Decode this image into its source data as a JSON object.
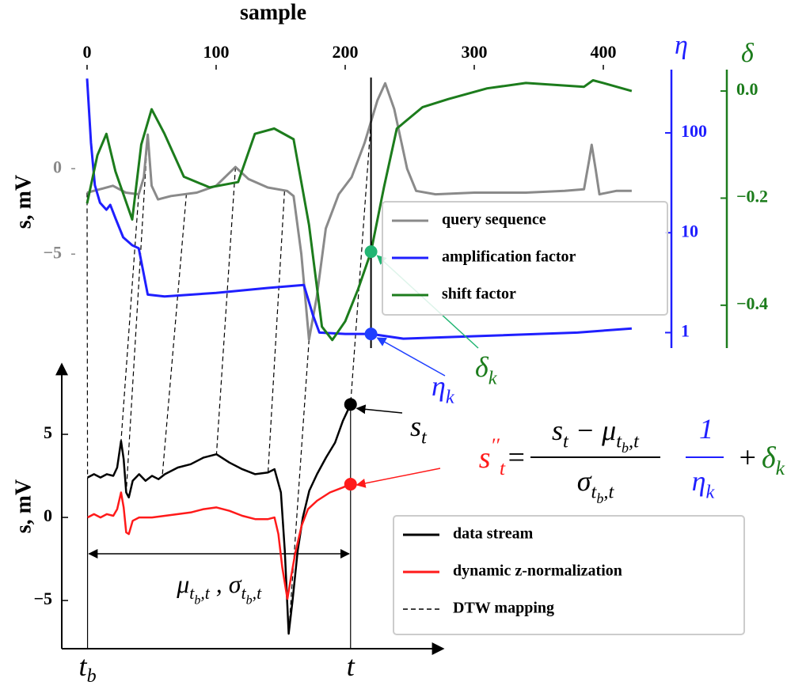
{
  "chart_data": [
    {
      "type": "line",
      "xlabel": "sample",
      "ylabel": "s,  mV",
      "y2label": "η",
      "y3label": "δ",
      "xlim": [
        -9,
        453
      ],
      "xticks": [
        0,
        100,
        200,
        300,
        400
      ],
      "ylim": [
        -10.5,
        5.8
      ],
      "yticks": [
        0,
        {
          "value": -5,
          "label": "−5"
        }
      ],
      "ycolor": "#8a8a8a",
      "y2lim": [
        0.7,
        430
      ],
      "y2scale": "log",
      "y2ticks": [
        1,
        10,
        100
      ],
      "y2color": "#1f1fff",
      "y3lim": [
        -0.48,
        0.04
      ],
      "y3ticks": [
        {
          "value": 0,
          "label": "0.0"
        },
        {
          "value": -0.2,
          "label": "−0.2"
        },
        {
          "value": -0.4,
          "label": "−0.4"
        }
      ],
      "y3color": "#1c7c1c",
      "legend": "right",
      "series": [
        {
          "name": "query sequence",
          "color": "#8a8a8a",
          "axis": "y",
          "x": [
            0,
            10,
            20,
            30,
            40,
            44,
            47,
            50,
            55,
            65,
            85,
            100,
            115,
            125,
            140,
            155,
            160,
            166,
            172,
            178,
            185,
            195,
            205,
            215,
            225,
            231,
            238,
            248,
            255,
            270,
            300,
            340,
            370,
            385,
            389,
            391,
            394,
            397,
            410,
            422
          ],
          "values": [
            -1.4,
            -1.2,
            -1.0,
            -1.4,
            -1.5,
            -0.5,
            2.0,
            -1.0,
            -1.8,
            -1.6,
            -1.4,
            -1.0,
            0.1,
            -0.6,
            -1.1,
            -1.3,
            -1.6,
            -5,
            -10.0,
            -7.5,
            -3.5,
            -1.5,
            -0.5,
            1.5,
            4.0,
            5.0,
            3.5,
            0.0,
            -1.3,
            -1.5,
            -1.4,
            -1.4,
            -1.3,
            -1.2,
            0.5,
            1.4,
            0.0,
            -1.5,
            -1.3,
            -1.3
          ]
        },
        {
          "name": "amplification factor",
          "color": "#1f1fff",
          "axis": "y2",
          "x": [
            0,
            3,
            6,
            10,
            15,
            18,
            22,
            28,
            35,
            40,
            47,
            60,
            100,
            140,
            168,
            175,
            180,
            200,
            220,
            245,
            300,
            380,
            422
          ],
          "values": [
            350,
            80,
            30,
            20,
            17,
            19,
            14,
            9,
            7.5,
            7.0,
            2.4,
            2.3,
            2.5,
            2.8,
            3.0,
            1.5,
            1.0,
            0.97,
            0.97,
            0.87,
            0.92,
            1.0,
            1.1
          ]
        },
        {
          "name": "shift factor",
          "color": "#1c7c1c",
          "axis": "y3",
          "x": [
            0,
            8,
            15,
            22,
            35,
            42,
            50,
            60,
            75,
            95,
            117,
            130,
            145,
            160,
            172,
            182,
            190,
            200,
            210,
            220,
            230,
            240,
            260,
            280,
            310,
            340,
            385,
            392,
            400,
            422
          ],
          "values": [
            -0.21,
            -0.12,
            -0.08,
            -0.15,
            -0.24,
            -0.1,
            -0.034,
            -0.08,
            -0.16,
            -0.18,
            -0.17,
            -0.08,
            -0.07,
            -0.09,
            -0.25,
            -0.44,
            -0.465,
            -0.43,
            -0.37,
            -0.3,
            -0.18,
            -0.07,
            -0.03,
            -0.015,
            0.005,
            0.015,
            0.008,
            0.02,
            0.015,
            0.0
          ]
        }
      ],
      "markers": [
        {
          "x": 220,
          "y": -0.3,
          "axis": "y3",
          "color": "#22b573",
          "label": [
            {
              "text": "δ",
              "style": "n"
            },
            {
              "text": "k",
              "style": "sub"
            }
          ],
          "label_color": "#1c7c1c"
        },
        {
          "x": 220,
          "y": 0.97,
          "axis": "y2",
          "color": "#1f3fff",
          "label": [
            {
              "text": "η",
              "style": "n"
            },
            {
              "text": "k",
              "style": "sub"
            }
          ],
          "label_color": "#1f1fff"
        }
      ]
    },
    {
      "type": "line",
      "ylabel": "s,  mV",
      "xlim": [
        -20,
        276
      ],
      "xticks": [
        {
          "value": 0,
          "label": "t",
          "sub": "b"
        },
        {
          "value": 204,
          "label": "t"
        }
      ],
      "ylim": [
        -7.9,
        9
      ],
      "yticks": [
        5,
        0,
        {
          "value": -5,
          "label": "−5"
        }
      ],
      "legend": "lower right",
      "series": [
        {
          "name": "data stream",
          "color": "#000000",
          "x": [
            0,
            5,
            10,
            15,
            20,
            23,
            26,
            28,
            30,
            32,
            35,
            40,
            45,
            50,
            55,
            60,
            70,
            80,
            90,
            100,
            110,
            120,
            130,
            140,
            145,
            150,
            153,
            156,
            159,
            163,
            167,
            172,
            178,
            185,
            192,
            198,
            204
          ],
          "values": [
            2.4,
            2.6,
            2.4,
            2.6,
            2.5,
            3.0,
            4.6,
            3.5,
            1.5,
            1.2,
            2.2,
            2.6,
            2.2,
            2.5,
            2.3,
            2.6,
            3.0,
            3.2,
            3.6,
            3.8,
            3.3,
            2.9,
            2.6,
            2.7,
            2.9,
            1.5,
            -2,
            -7.0,
            -5,
            -2,
            0,
            1.6,
            2.6,
            3.6,
            4.5,
            5.8,
            6.8
          ]
        },
        {
          "name": "dynamic z-normalization",
          "color": "#ff1a1a",
          "x": [
            0,
            5,
            10,
            15,
            20,
            23,
            26,
            28,
            30,
            32,
            35,
            40,
            50,
            60,
            70,
            80,
            90,
            100,
            110,
            120,
            130,
            140,
            145,
            148,
            151,
            155,
            158,
            161,
            166,
            171,
            178,
            188,
            198,
            204
          ],
          "values": [
            0,
            0.2,
            0,
            0.2,
            0.1,
            0.5,
            1.5,
            0.6,
            -0.9,
            -1.0,
            -0.2,
            0,
            0,
            0.1,
            0.2,
            0.3,
            0.5,
            0.6,
            0.4,
            0.1,
            -0.1,
            -0.1,
            0,
            -1.0,
            -3,
            -4.9,
            -3.5,
            -2.2,
            -0.5,
            0.5,
            1.0,
            1.5,
            1.8,
            2.0
          ]
        }
      ],
      "mapping": {
        "name": "DTW mapping",
        "color": "#000000",
        "pairs": [
          {
            "sample": 0,
            "s": -1.4,
            "t": 0,
            "value": 2.4
          },
          {
            "sample": 40,
            "s": -1.5,
            "t": 26,
            "value": 4.6
          },
          {
            "sample": 47,
            "s": 2.0,
            "t": 30,
            "value": 1.5
          },
          {
            "sample": 77,
            "s": -1.45,
            "t": 58,
            "value": 2.5
          },
          {
            "sample": 115,
            "s": 0.1,
            "t": 100,
            "value": 3.8
          },
          {
            "sample": 153,
            "s": -1.3,
            "t": 140,
            "value": 2.7
          },
          {
            "sample": 172,
            "s": -10.0,
            "t": 156,
            "value": -7.0
          },
          {
            "sample": 220,
            "s": 2.8,
            "t": 204,
            "value": 6.8
          }
        ]
      },
      "markers": [
        {
          "x": 204,
          "y": 6.8,
          "color": "#000000",
          "label": [
            {
              "text": "s",
              "style": "n"
            },
            {
              "text": "t",
              "style": "sub"
            }
          ],
          "label_color": "#000000"
        },
        {
          "x": 204,
          "y": 2.0,
          "color": "#ff1a1a",
          "label": [
            {
              "text": "s",
              "style": "n"
            },
            {
              "text": "′′",
              "style": "sup"
            },
            {
              "text": "t",
              "style": "sub"
            }
          ],
          "label_color": "#ff1a1a"
        }
      ],
      "span_label": [
        {
          "text": "μ",
          "style": "n"
        },
        {
          "text": "t",
          "style": "sub"
        },
        {
          "text": "b",
          "style": "subsub"
        },
        {
          "text": ",t",
          "style": "sub"
        },
        {
          "text": " , σ",
          "style": "n"
        },
        {
          "text": "t",
          "style": "sub"
        },
        {
          "text": "b",
          "style": "subsub"
        },
        {
          "text": ",t",
          "style": "sub"
        }
      ],
      "formula": {
        "eq": "=",
        "num": [
          {
            "text": "s",
            "style": "n"
          },
          {
            "text": "t",
            "style": "sub"
          },
          {
            "text": " − μ",
            "style": "n"
          },
          {
            "text": "t",
            "style": "sub"
          },
          {
            "text": "b",
            "style": "subsub"
          },
          {
            "text": ",t",
            "style": "sub"
          }
        ],
        "den": [
          {
            "text": "σ",
            "style": "n"
          },
          {
            "text": "t",
            "style": "sub"
          },
          {
            "text": "b",
            "style": "subsub"
          },
          {
            "text": ",t",
            "style": "sub"
          }
        ],
        "num2": [
          {
            "text": "1",
            "style": "n"
          }
        ],
        "den2": [
          {
            "text": "η",
            "style": "n"
          },
          {
            "text": "k",
            "style": "sub"
          }
        ],
        "plus": "+",
        "tail": [
          {
            "text": "δ",
            "style": "n"
          },
          {
            "text": "k",
            "style": "sub"
          }
        ],
        "color2": "#1f1fff",
        "tail_color": "#1c7c1c"
      }
    }
  ]
}
